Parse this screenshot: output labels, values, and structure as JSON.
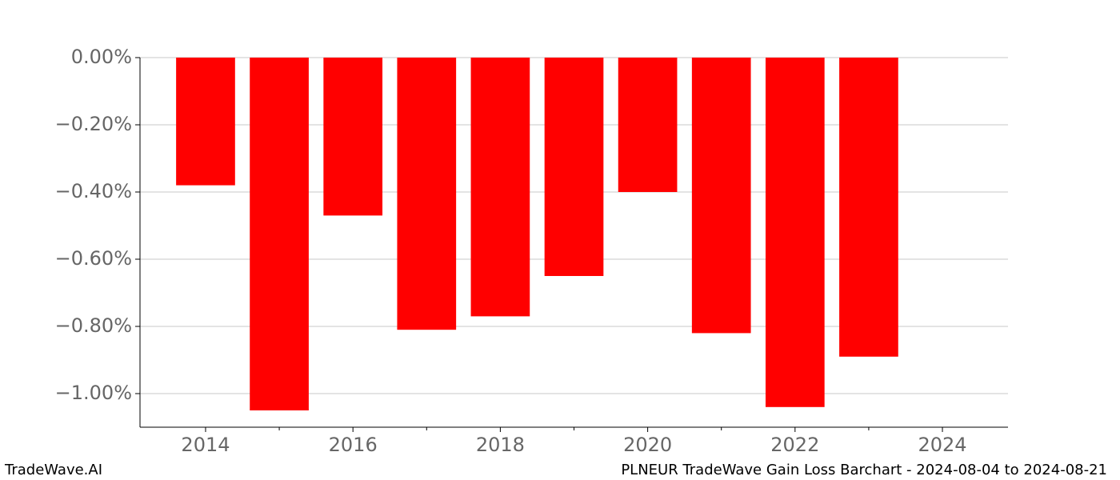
{
  "chart_data": {
    "type": "bar",
    "title": "PLNEUR TradeWave Gain Loss Barchart - 2024-08-04 to 2024-08-21",
    "watermark": "TradeWave.AI",
    "x": [
      2014,
      2015,
      2016,
      2017,
      2018,
      2019,
      2020,
      2021,
      2022,
      2023
    ],
    "values": [
      -0.38,
      -1.05,
      -0.47,
      -0.81,
      -0.77,
      -0.65,
      -0.4,
      -0.82,
      -1.04,
      -0.89
    ],
    "bar_width": 0.8,
    "color": "#ff0000",
    "xlim": [
      2013.11,
      2024.89
    ],
    "xticks": [
      2014,
      2016,
      2018,
      2020,
      2022,
      2024
    ],
    "xminorticks": [
      2015,
      2017,
      2019,
      2021,
      2023
    ],
    "ylim": [
      -1.1,
      0
    ],
    "yticks": [
      {
        "value": 0,
        "label": "0.00%"
      },
      {
        "value": -0.2,
        "label": "−0.20%"
      },
      {
        "value": -0.4,
        "label": "−0.40%"
      },
      {
        "value": -0.6,
        "label": "−0.60%"
      },
      {
        "value": -0.8,
        "label": "−0.80%"
      },
      {
        "value": -1.0,
        "label": "−1.00%"
      }
    ],
    "grid": true
  }
}
